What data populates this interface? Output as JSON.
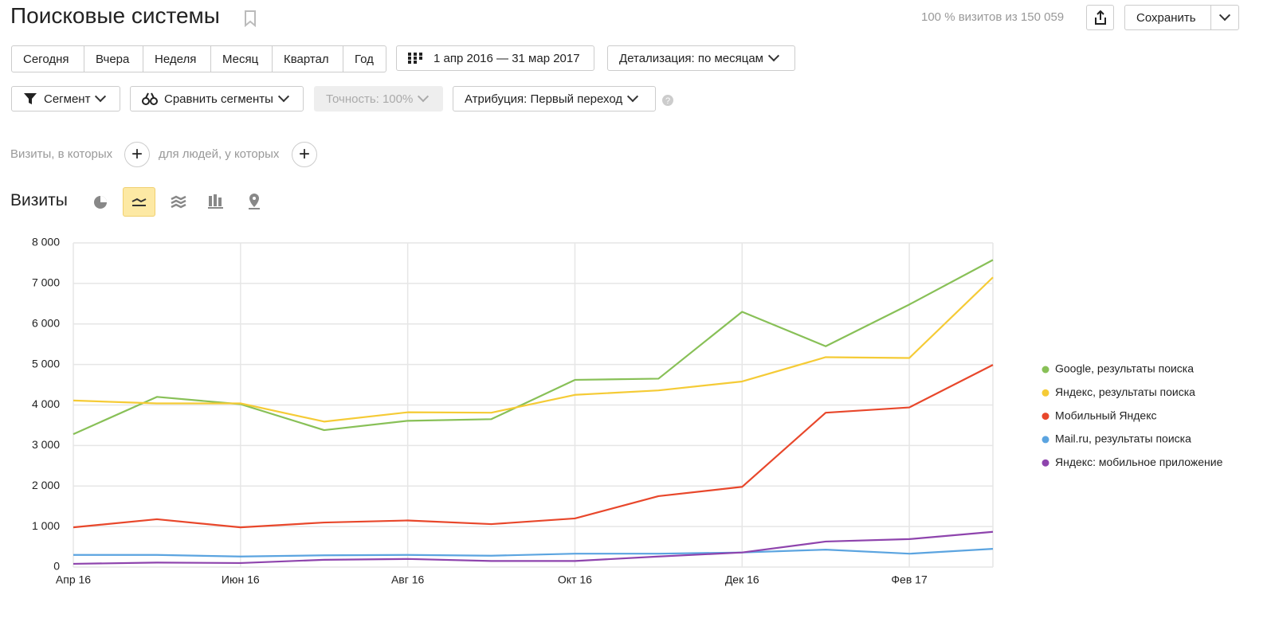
{
  "header": {
    "title": "Поисковые системы",
    "summary": "100 % визитов из 150 059",
    "save": "Сохранить"
  },
  "periods": [
    "Сегодня",
    "Вчера",
    "Неделя",
    "Месяц",
    "Квартал",
    "Год"
  ],
  "date_range": "1 апр 2016 — 31 мар 2017",
  "detail": "Детализация: по месяцам",
  "filters": {
    "segment": "Сегмент",
    "compare": "Сравнить сегменты",
    "accuracy": "Точность: 100%",
    "attribution": "Атрибуция: Первый переход"
  },
  "conditions": {
    "visits": "Визиты, в которых",
    "people": "для людей, у которых"
  },
  "chart_data": {
    "type": "line",
    "title": "Визиты",
    "categories": [
      "Апр 16",
      null,
      "Июн 16",
      null,
      "Авг 16",
      null,
      "Окт 16",
      null,
      "Дек 16",
      null,
      "Фев 17",
      null
    ],
    "series": [
      {
        "name": "Google, результаты поиска",
        "color": "#88c057",
        "values": [
          3280,
          4200,
          4020,
          3380,
          3610,
          3650,
          4620,
          4650,
          6300,
          5450,
          6480,
          7580
        ]
      },
      {
        "name": "Яндекс, результаты поиска",
        "color": "#f5cb36",
        "values": [
          4110,
          4040,
          4040,
          3590,
          3820,
          3810,
          4250,
          4360,
          4580,
          5180,
          5160,
          7150
        ]
      },
      {
        "name": "Мобильный Яндекс",
        "color": "#e8472b",
        "values": [
          980,
          1180,
          980,
          1100,
          1150,
          1060,
          1200,
          1750,
          1980,
          3810,
          3940,
          4990
        ]
      },
      {
        "name": "Mail.ru, результаты поиска",
        "color": "#5ba4e0",
        "values": [
          300,
          300,
          260,
          290,
          300,
          280,
          330,
          330,
          360,
          430,
          330,
          450
        ]
      },
      {
        "name": "Яндекс: мобильное приложение",
        "color": "#8e44ad",
        "values": [
          80,
          110,
          100,
          180,
          200,
          150,
          150,
          260,
          360,
          630,
          690,
          870
        ]
      }
    ],
    "ylim": [
      0,
      8000
    ],
    "yticks": [
      0,
      {
        "value": 1000,
        "label": "1 000"
      },
      {
        "value": 2000,
        "label": "2 000"
      },
      {
        "value": 3000,
        "label": "3 000"
      },
      {
        "value": 4000,
        "label": "4 000"
      },
      {
        "value": 5000,
        "label": "5 000"
      },
      {
        "value": 6000,
        "label": "6 000"
      },
      {
        "value": 7000,
        "label": "7 000"
      },
      {
        "value": 8000,
        "label": "8 000"
      }
    ],
    "grid": true,
    "legend": "right"
  }
}
